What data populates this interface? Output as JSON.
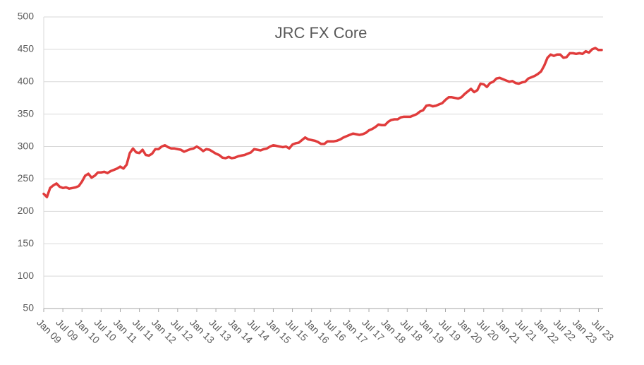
{
  "chart_data": {
    "type": "line",
    "title": "JRC FX Core",
    "categories": [
      "Jan 09",
      null,
      null,
      null,
      null,
      null,
      "Jul 09",
      null,
      null,
      null,
      null,
      null,
      "Jan 10",
      null,
      null,
      null,
      null,
      null,
      "Jul 10",
      null,
      null,
      null,
      null,
      null,
      "Jan 11",
      null,
      null,
      null,
      null,
      null,
      "Jul 11",
      null,
      null,
      null,
      null,
      null,
      "Jan 12",
      null,
      null,
      null,
      null,
      null,
      "Jul 12",
      null,
      null,
      null,
      null,
      null,
      "Jan 13",
      null,
      null,
      null,
      null,
      null,
      "Jul 13",
      null,
      null,
      null,
      null,
      null,
      "Jan 14",
      null,
      null,
      null,
      null,
      null,
      "Jul 14",
      null,
      null,
      null,
      null,
      null,
      "Jan 15",
      null,
      null,
      null,
      null,
      null,
      "Jul 15",
      null,
      null,
      null,
      null,
      null,
      "Jan 16",
      null,
      null,
      null,
      null,
      null,
      "Jul 16",
      null,
      null,
      null,
      null,
      null,
      "Jan 17",
      null,
      null,
      null,
      null,
      null,
      "Jul 17",
      null,
      null,
      null,
      null,
      null,
      "Jan 18",
      null,
      null,
      null,
      null,
      null,
      "Jul 18",
      null,
      null,
      null,
      null,
      null,
      "Jan 19",
      null,
      null,
      null,
      null,
      null,
      "Jul 19",
      null,
      null,
      null,
      null,
      null,
      "Jan 20",
      null,
      null,
      null,
      null,
      null,
      "Jul 20",
      null,
      null,
      null,
      null,
      null,
      "Jan 21",
      null,
      null,
      null,
      null,
      null,
      "Jul 21",
      null,
      null,
      null,
      null,
      null,
      "Jan 22",
      null,
      null,
      null,
      null,
      null,
      "Jul 22",
      null,
      null,
      null,
      null,
      null,
      "Jan 23",
      null,
      null,
      null,
      null,
      null,
      "Jul 23",
      null
    ],
    "series": [
      {
        "name": "JRC FX Core",
        "color": "#e03c3c",
        "values": [
          227,
          222,
          236,
          240,
          243,
          238,
          236,
          237,
          235,
          236,
          237,
          239,
          246,
          255,
          258,
          252,
          255,
          260,
          260,
          261,
          259,
          262,
          264,
          266,
          269,
          266,
          272,
          290,
          297,
          291,
          290,
          295,
          287,
          286,
          289,
          296,
          296,
          300,
          302,
          299,
          297,
          297,
          296,
          295,
          292,
          294,
          296,
          297,
          300,
          297,
          293,
          296,
          295,
          292,
          289,
          287,
          283,
          282,
          284,
          282,
          283,
          285,
          286,
          287,
          289,
          291,
          296,
          295,
          294,
          296,
          297,
          300,
          302,
          301,
          300,
          299,
          300,
          297,
          303,
          305,
          306,
          310,
          314,
          311,
          310,
          309,
          307,
          304,
          304,
          308,
          308,
          308,
          309,
          311,
          314,
          316,
          318,
          320,
          319,
          318,
          319,
          321,
          325,
          327,
          330,
          334,
          333,
          333,
          338,
          341,
          342,
          342,
          345,
          346,
          346,
          346,
          348,
          350,
          354,
          356,
          363,
          364,
          362,
          363,
          365,
          367,
          372,
          376,
          376,
          375,
          374,
          376,
          381,
          385,
          389,
          384,
          387,
          397,
          396,
          392,
          398,
          400,
          405,
          406,
          404,
          402,
          400,
          401,
          398,
          397,
          399,
          400,
          405,
          407,
          409,
          412,
          416,
          425,
          437,
          442,
          440,
          442,
          442,
          437,
          438,
          444,
          444,
          443,
          444,
          443,
          447,
          445,
          450,
          452,
          449,
          449
        ]
      }
    ],
    "ylim": [
      50,
      500
    ],
    "yticks": [
      50,
      100,
      150,
      200,
      250,
      300,
      350,
      400,
      450,
      500
    ],
    "grid": true
  }
}
